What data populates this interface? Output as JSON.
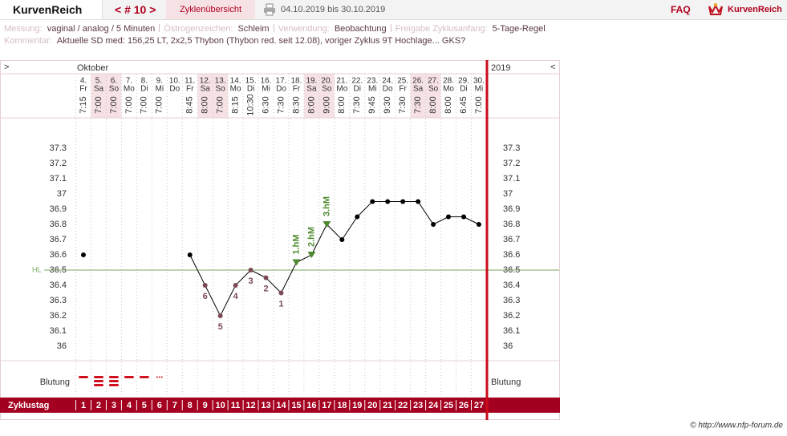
{
  "header": {
    "logo": "KurvenReich",
    "cycle_nav": "< # 10 >",
    "overview": "Zyklenübersicht",
    "range": "04.10.2019 bis 30.10.2019",
    "faq": "FAQ",
    "brand": "KurvenReich"
  },
  "info": {
    "fields": [
      {
        "label": "Messung:",
        "value": "vaginal / analog / 5 Minuten"
      },
      {
        "label": "Östrogenzeichen:",
        "value": "Schleim"
      },
      {
        "label": "Verwendung:",
        "value": "Beobachtung"
      },
      {
        "label": "Freigabe Zyklusanfang:",
        "value": "5-Tage-Regel"
      }
    ],
    "comment": {
      "label": "Kommentar:",
      "value": "Aktuelle SD med: 156,25 LT, 2x2,5 Thybon (Thybon red. seit 12.08), voriger Zyklus 9T Hochlage... GKS?"
    }
  },
  "chart_data": {
    "type": "line",
    "nav_left": ">",
    "nav_right": "<",
    "month": "Oktober",
    "year": "2019",
    "categories": [
      "4.",
      "5.",
      "6.",
      "7.",
      "8.",
      "9.",
      "10.",
      "11.",
      "12.",
      "13.",
      "14.",
      "15.",
      "16.",
      "17.",
      "18.",
      "19.",
      "20.",
      "21.",
      "22.",
      "23.",
      "24.",
      "25.",
      "26.",
      "27.",
      "28.",
      "29.",
      "30."
    ],
    "weekdays": [
      "Fr",
      "Sa",
      "So",
      "Mo",
      "Di",
      "Mi",
      "Do",
      "Fr",
      "Sa",
      "So",
      "Mo",
      "Di",
      "Mi",
      "Do",
      "Fr",
      "Sa",
      "So",
      "Mo",
      "Di",
      "Mi",
      "Do",
      "Fr",
      "Sa",
      "So",
      "Mo",
      "Di",
      "Mi"
    ],
    "times": [
      "7:15",
      "7:00",
      "7:00",
      "7:00",
      "7:00",
      "7:00",
      null,
      "8:45",
      "8:00",
      "7:00",
      "8:15",
      "10:30",
      "6:30",
      "7:30",
      "8:30",
      "8:00",
      "9:00",
      "8:00",
      "7:30",
      "9:45",
      "9:30",
      "7:30",
      "7:30",
      "8:00",
      "8:00",
      "6:45",
      "7:00"
    ],
    "highlight": [
      false,
      true,
      true,
      false,
      false,
      false,
      false,
      false,
      true,
      true,
      false,
      false,
      false,
      false,
      false,
      true,
      true,
      false,
      false,
      false,
      false,
      false,
      true,
      true,
      false,
      false,
      false
    ],
    "highlight_color": "#f6e1e5",
    "values": [
      36.6,
      null,
      null,
      null,
      null,
      null,
      null,
      36.6,
      36.4,
      36.2,
      36.4,
      36.5,
      36.45,
      36.35,
      36.55,
      36.6,
      36.8,
      36.7,
      36.85,
      36.95,
      36.95,
      36.95,
      36.95,
      36.8,
      36.85,
      36.85,
      36.8
    ],
    "color": "#000000",
    "point_colors": [
      "#000000",
      null,
      null,
      null,
      null,
      null,
      null,
      "#000000",
      "#7b4a55",
      "#7b4a55",
      "#7b4a55",
      "#7b4a55",
      "#7b4a55",
      "#7b4a55",
      "#4e8a2e",
      "#4e8a2e",
      "#4e8a2e",
      "#000000",
      "#000000",
      "#000000",
      "#000000",
      "#000000",
      "#000000",
      "#000000",
      "#000000",
      "#000000",
      "#000000"
    ],
    "point_shapes": [
      "dot",
      null,
      null,
      null,
      null,
      null,
      null,
      "dot",
      "dot",
      "dot",
      "dot",
      "dot",
      "dot",
      "dot",
      "triangle",
      "triangle",
      "triangle",
      "dot",
      "dot",
      "dot",
      "dot",
      "dot",
      "dot",
      "dot",
      "dot",
      "dot",
      "dot"
    ],
    "point_labels": [
      null,
      null,
      null,
      null,
      null,
      null,
      null,
      null,
      "6",
      "5",
      "4",
      "3",
      "2",
      "1",
      "1.hM",
      "2.hM",
      "3.hM",
      null,
      null,
      null,
      null,
      null,
      null,
      null,
      null,
      null,
      null
    ],
    "ylim": [
      36,
      37.3
    ],
    "yticks": [
      36,
      36.1,
      36.2,
      36.3,
      36.4,
      36.5,
      36.6,
      36.7,
      36.8,
      36.9,
      37,
      37.1,
      37.2,
      37.3
    ],
    "hl": {
      "label": "HL",
      "value": 36.5,
      "color": "#7aab5c"
    },
    "bleeding": {
      "label": "Blutung",
      "color": "#d0101e",
      "values": [
        2,
        3,
        3,
        2,
        2,
        1,
        null,
        null,
        null,
        null,
        null,
        null,
        null,
        null,
        null,
        null,
        null,
        null,
        null,
        null,
        null,
        null,
        null,
        null,
        null,
        null,
        null
      ]
    },
    "cycle_days": {
      "label": "Zyklustag",
      "values": [
        "1",
        "2",
        "3",
        "4",
        "5",
        "6",
        "7",
        "8",
        "9",
        "10",
        "11",
        "12",
        "13",
        "14",
        "15",
        "16",
        "17",
        "18",
        "19",
        "20",
        "21",
        "22",
        "23",
        "24",
        "25",
        "26",
        "27"
      ]
    }
  },
  "footer": "© http://www.nfp-forum.de"
}
